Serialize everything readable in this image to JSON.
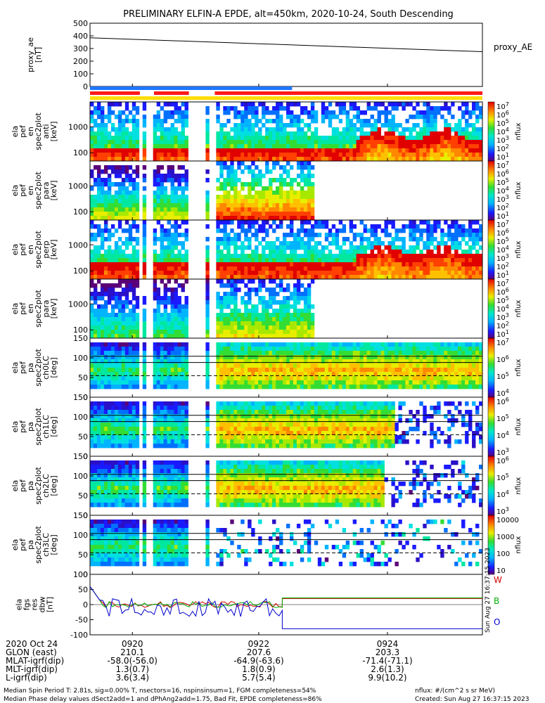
{
  "chart_data": {
    "type": "heatmap",
    "title": "PRELIMINARY ELFIN-A EPDE, alt=450km, 2020-10-24, South Descending",
    "time_ticks": [
      "0920",
      "0922",
      "0924"
    ],
    "panels": [
      {
        "id": "proxy_ae",
        "type": "line",
        "ylabel_lines": [
          "proxy_ae",
          "[nT]"
        ],
        "yticks": [
          "500",
          "400",
          "300",
          "200",
          "100",
          "0"
        ],
        "ylim": [
          0,
          500
        ],
        "series": [
          {
            "name": "proxy_AE",
            "x_frac": [
              0,
              1
            ],
            "values": [
              385,
              275
            ]
          }
        ]
      },
      {
        "id": "en_anti",
        "type": "heatmap",
        "ylabel_lines": [
          "ela",
          "pef",
          "en",
          "spec2plot",
          "anti",
          "[keV]"
        ],
        "yticks": [
          "1000",
          "100"
        ],
        "cbar_ticks": [
          "10",
          "10",
          "10",
          "10",
          "10",
          "10",
          "10"
        ],
        "cbar_exps": [
          "7",
          "6",
          "5",
          "4",
          "3",
          "2",
          "1"
        ],
        "cbar_label": "nflux"
      },
      {
        "id": "en_para",
        "type": "heatmap",
        "ylabel_lines": [
          "ela",
          "pef",
          "en",
          "spec2plot",
          "para",
          "[keV]"
        ],
        "yticks": [
          "1000",
          "100"
        ],
        "cbar_ticks": [
          "10",
          "10",
          "10",
          "10",
          "10",
          "10",
          "10"
        ],
        "cbar_exps": [
          "7",
          "6",
          "5",
          "4",
          "3",
          "2",
          "1"
        ],
        "cbar_label": "nflux"
      },
      {
        "id": "en_perp",
        "type": "heatmap",
        "ylabel_lines": [
          "ela",
          "pef",
          "en",
          "spec2plot",
          "perp",
          "[keV]"
        ],
        "yticks": [
          "1000",
          "100"
        ],
        "cbar_ticks": [
          "10",
          "10",
          "10",
          "10",
          "10",
          "10",
          "10"
        ],
        "cbar_exps": [
          "7",
          "6",
          "5",
          "4",
          "3",
          "2",
          "1"
        ],
        "cbar_label": "nflux"
      },
      {
        "id": "en_para2",
        "type": "heatmap",
        "ylabel_lines": [
          "ela",
          "pef",
          "en",
          "spec2plot",
          "para",
          "[keV]"
        ],
        "yticks": [
          "1000",
          "100"
        ],
        "cbar_ticks": [
          "10",
          "10",
          "10",
          "10",
          "10",
          "10",
          "10"
        ],
        "cbar_exps": [
          "7",
          "6",
          "5",
          "4",
          "3",
          "2",
          "1"
        ],
        "cbar_label": "nflux"
      },
      {
        "id": "ch0LC",
        "type": "heatmap",
        "ylabel_lines": [
          "ela",
          "pef",
          "pa",
          "spec2plot",
          "ch0LC",
          "[deg]"
        ],
        "yticks": [
          "150",
          "100",
          "50",
          "0"
        ],
        "cbar_ticks": [
          "10",
          "10",
          "10",
          "10"
        ],
        "cbar_exps": [
          "7",
          "6",
          "5",
          "4"
        ],
        "cbar_label": "nflux"
      },
      {
        "id": "ch1LC",
        "type": "heatmap",
        "ylabel_lines": [
          "ela",
          "pef",
          "pa",
          "spec2plot",
          "ch1LC",
          "[deg]"
        ],
        "yticks": [
          "150",
          "100",
          "50",
          "0"
        ],
        "cbar_ticks": [
          "10",
          "10",
          "10",
          "10"
        ],
        "cbar_exps": [
          "6",
          "5",
          "4",
          "3"
        ],
        "cbar_label": "nflux"
      },
      {
        "id": "ch2LC",
        "type": "heatmap",
        "ylabel_lines": [
          "ela",
          "pef",
          "pa",
          "spec2plot",
          "ch2LC",
          "[deg]"
        ],
        "yticks": [
          "150",
          "100",
          "50",
          "0"
        ],
        "cbar_ticks": [
          "10",
          "10",
          "10",
          "10"
        ],
        "cbar_exps": [
          "6",
          "5",
          "4",
          "3"
        ],
        "cbar_label": "nflux"
      },
      {
        "id": "ch3LC",
        "type": "heatmap",
        "ylabel_lines": [
          "ela",
          "pef",
          "pa",
          "spec2plot",
          "ch3LC",
          "[deg]"
        ],
        "yticks": [
          "150",
          "100",
          "50",
          "0"
        ],
        "cbar_ticks": [
          "10000",
          "1000",
          "100",
          "10"
        ],
        "cbar_exps": [
          "",
          "",
          "",
          ""
        ],
        "cbar_label": "nflux"
      },
      {
        "id": "fgs",
        "type": "line",
        "ylabel_lines": [
          "ela",
          "fgs",
          "res",
          "dbw",
          "[nT]"
        ],
        "yticks": [
          "100",
          "50",
          "0",
          "-50",
          "-100"
        ],
        "ylim": [
          -100,
          100
        ],
        "legend": [
          "W",
          "B",
          "O"
        ],
        "legend_colors": [
          "#d00000",
          "#00b000",
          "#0000d0"
        ]
      }
    ],
    "orbit_table": {
      "rows": [
        {
          "label": "2020 Oct 24",
          "vals": [
            "0920",
            "0922",
            "0924"
          ]
        },
        {
          "label": "GLON (east)",
          "vals": [
            "210.1",
            "207.6",
            "203.3"
          ]
        },
        {
          "label": "MLAT-igrf(dip)",
          "vals": [
            "-58.0(-56.0)",
            "-64.9(-63.6)",
            "-71.4(-71.1)"
          ]
        },
        {
          "label": "MLT-igrf(dip)",
          "vals": [
            "1.3(0.7)",
            "1.8(0.9)",
            "2.6(1.3)"
          ]
        },
        {
          "label": "L-igrf(dip)",
          "vals": [
            "3.6(3.4)",
            "5.7(5.4)",
            "9.9(10.2)"
          ]
        }
      ]
    },
    "footer": {
      "line1": "Median Spin Period T: 2.81s, sig=0.00% T, nsectors=16, nspinsinsum=1, FGM completeness=54%",
      "line2": "Median Phase delay values dSect2add=1 and dPhAng2add=1.75, Bad Fit, EPDE completeness=86%",
      "unit": "nflux: #/(cm^2 s sr MeV)",
      "created": "Created: Sun Aug 27 16:37:15 2023",
      "side": "Sun Aug 27 16:37:15 2023"
    },
    "status_bars": [
      {
        "color": "#1f77ff",
        "segments": [
          [
            0.0,
            0.515
          ]
        ]
      },
      {
        "color": "#ff1a1a",
        "segments": [
          [
            0.0,
            0.127
          ],
          [
            0.163,
            0.252
          ],
          [
            0.318,
            1.0
          ]
        ]
      },
      {
        "color": "#ffdd00",
        "segments": [
          [
            0.0,
            1.0
          ]
        ]
      }
    ]
  }
}
